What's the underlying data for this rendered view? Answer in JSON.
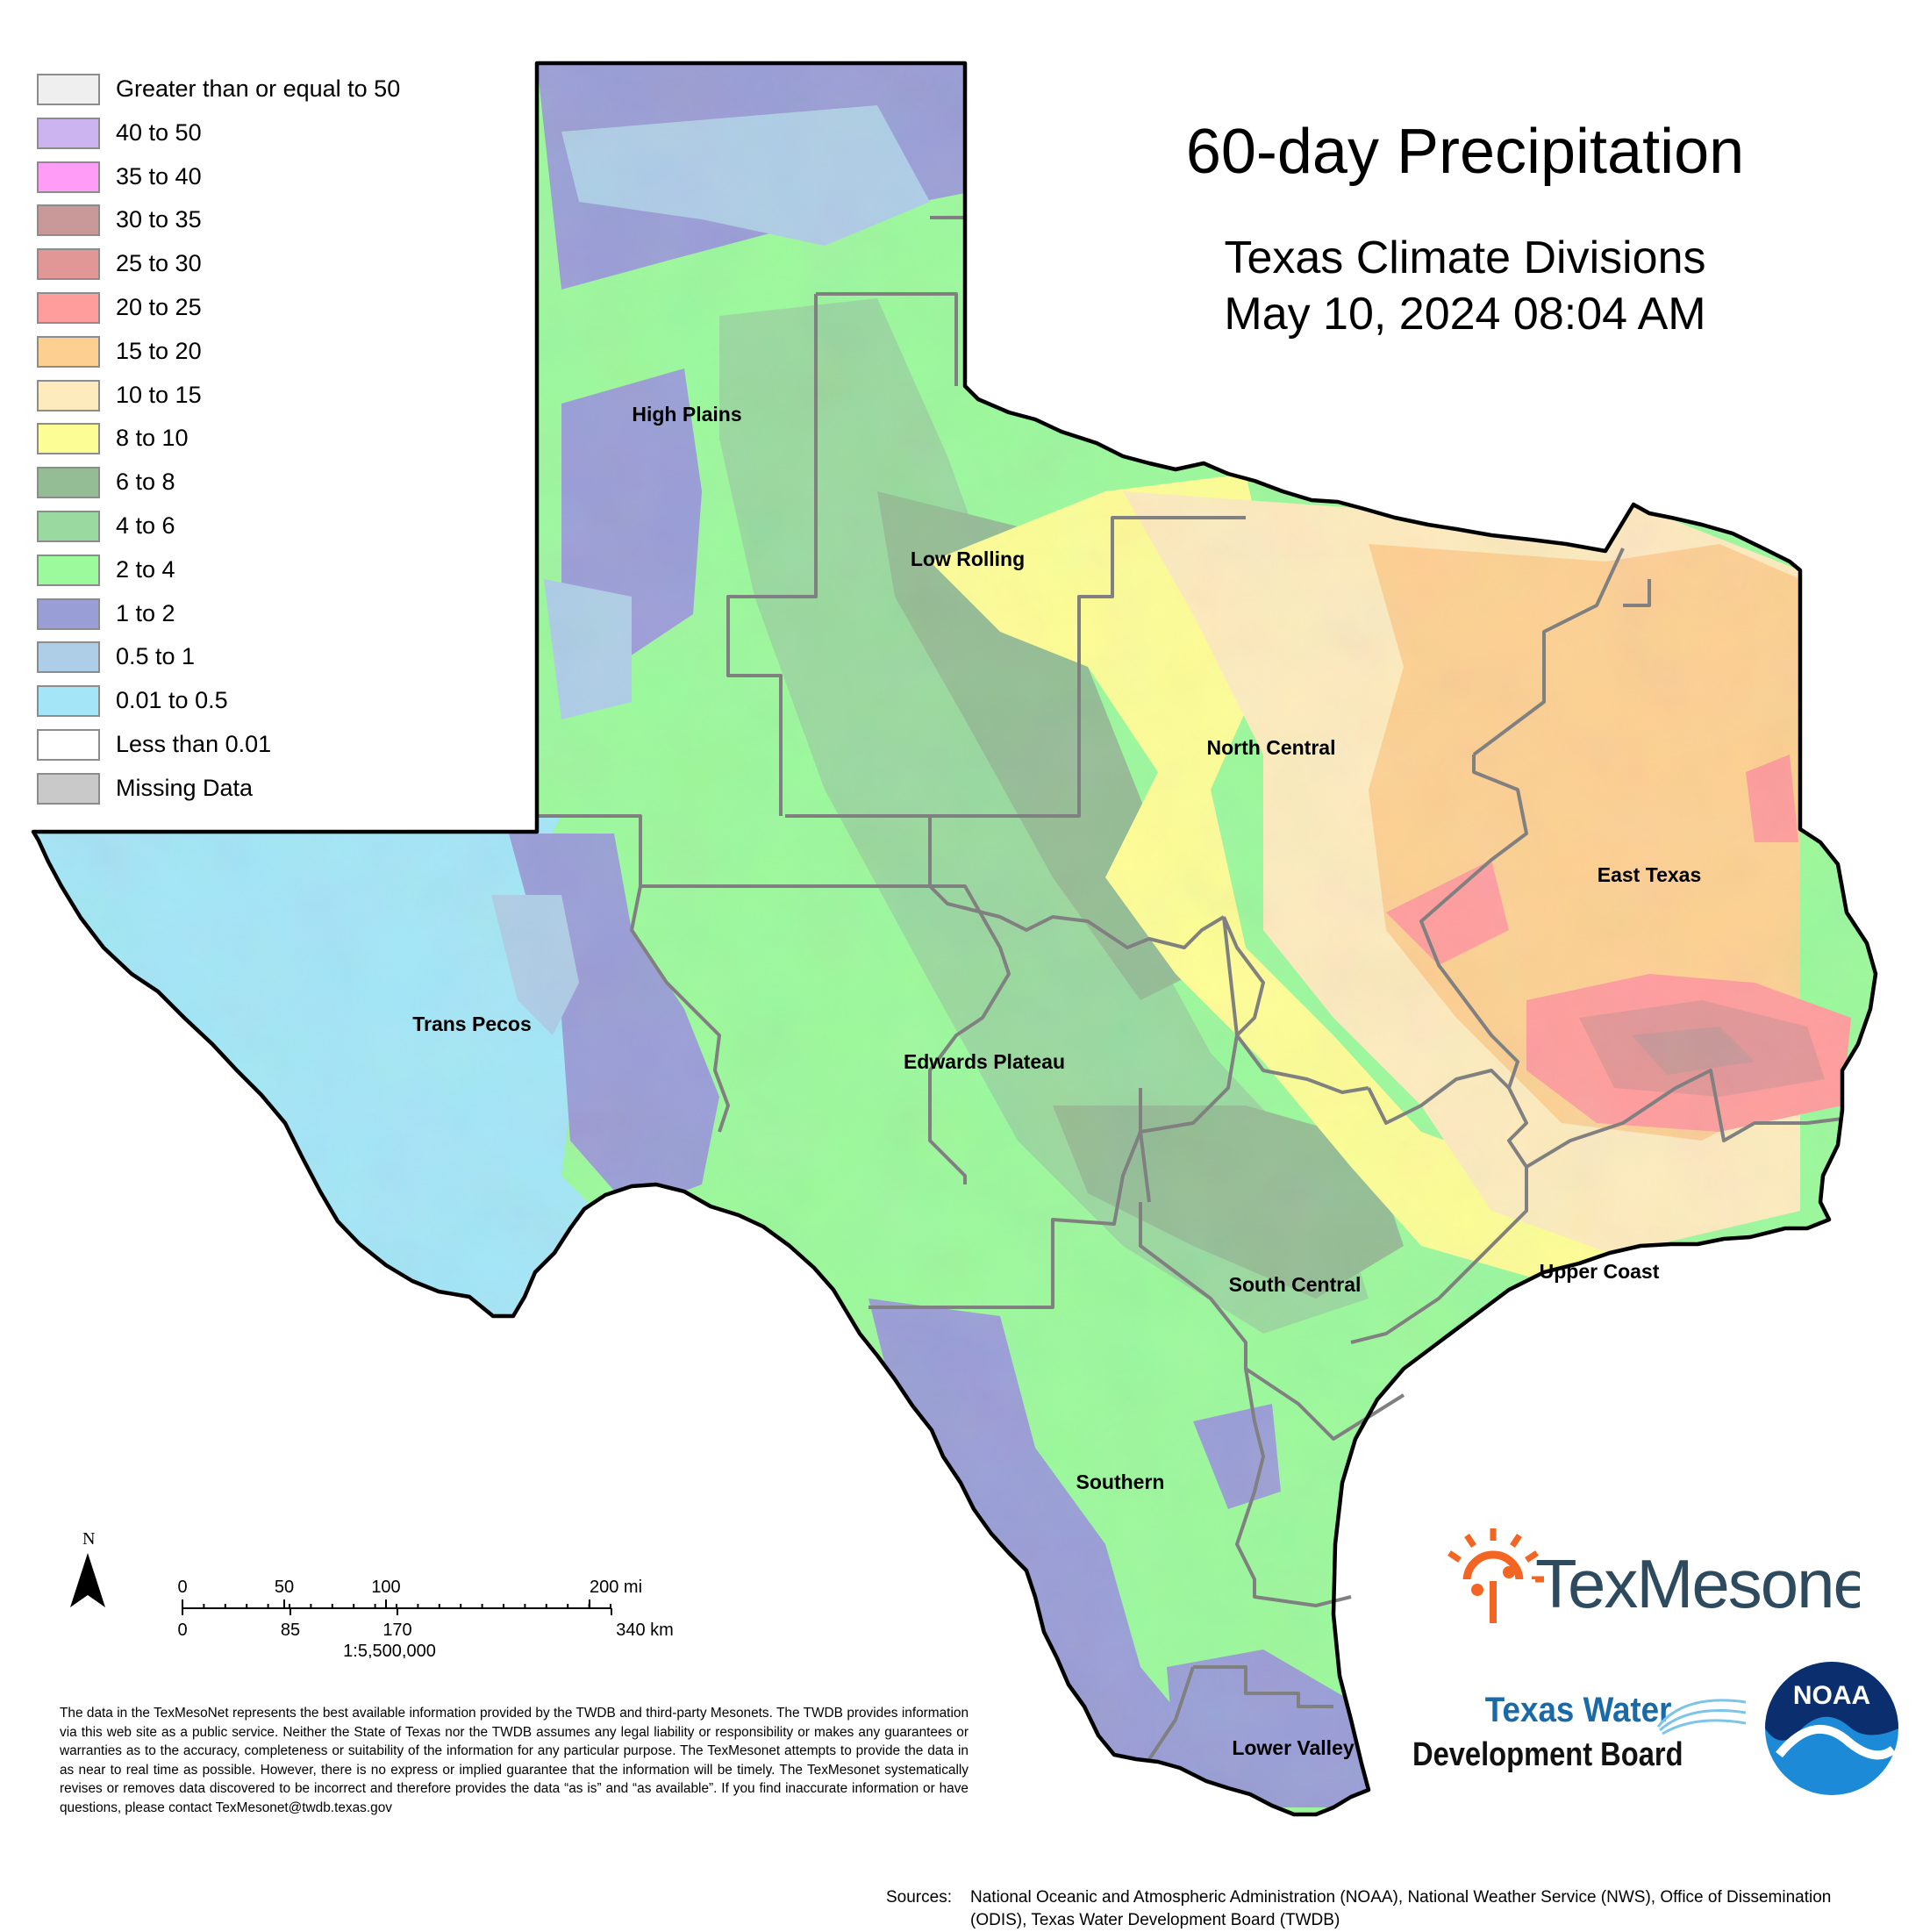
{
  "title": "60-day Precipitation",
  "subtitle": "Texas Climate Divisions",
  "date": "May 10, 2024 08:04 AM",
  "legend": [
    {
      "label": "Greater than or equal to 50",
      "color": "#efefef"
    },
    {
      "label": "40 to 50",
      "color": "#cbb4f0"
    },
    {
      "label": "35 to 40",
      "color": "#ff9cf7"
    },
    {
      "label": "30 to 35",
      "color": "#c99898"
    },
    {
      "label": "25 to 30",
      "color": "#e29797"
    },
    {
      "label": "20 to 25",
      "color": "#ff9d9d"
    },
    {
      "label": "15 to 20",
      "color": "#fdd092"
    },
    {
      "label": "10 to 15",
      "color": "#fdebbe"
    },
    {
      "label": "8 to 10",
      "color": "#fdfd96"
    },
    {
      "label": "6 to 8",
      "color": "#95bd95"
    },
    {
      "label": "4 to 6",
      "color": "#9ad99f"
    },
    {
      "label": "2 to 4",
      "color": "#9cf99c"
    },
    {
      "label": "1 to 2",
      "color": "#9a9ed6"
    },
    {
      "label": "0.5 to 1",
      "color": "#aecde6"
    },
    {
      "label": "0.01 to 0.5",
      "color": "#a4e6f7"
    },
    {
      "label": "Less than 0.01",
      "color": "#ffffff"
    },
    {
      "label": "Missing Data",
      "color": "#c9c9c9"
    }
  ],
  "regions": [
    {
      "name": "High Plains"
    },
    {
      "name": "Low Rolling"
    },
    {
      "name": "North Central"
    },
    {
      "name": "East Texas"
    },
    {
      "name": "Trans Pecos"
    },
    {
      "name": "Edwards Plateau"
    },
    {
      "name": "South Central"
    },
    {
      "name": "Upper Coast"
    },
    {
      "name": "Southern"
    },
    {
      "name": "Lower Valley"
    }
  ],
  "scale": {
    "north": "N",
    "mi_ticks": [
      "0",
      "50",
      "100",
      "200 mi"
    ],
    "km_ticks": [
      "0",
      "85",
      "170",
      "340 km"
    ],
    "ratio": "1:5,500,000"
  },
  "disclaimer": "The data in the TexMesoNet represents the best available information provided by the TWDB and third-party Mesonets. The TWDB provides information via this web site as a public service. Neither the State of Texas nor the TWDB assumes any legal liability or responsibility or makes any guarantees or warranties as to the accuracy, completeness or suitability of the information for any particular purpose. The TexMesonet attempts to provide the data in as near to real time as possible. However, there is no express or implied guarantee that the information will be timely. The TexMesonet systematically revises or removes data discovered to be incorrect and therefore provides the data “as is” and “as available”. If you find inaccurate information or have questions, please contact TexMesonet@twdb.texas.gov",
  "sources_label": "Sources:",
  "sources": "National Oceanic and Atmospheric Administration (NOAA), National Weather Service (NWS), Office of Dissemination (ODIS), Texas Water Development Board (TWDB)",
  "logos": {
    "texmesonet": "TexMesonet",
    "twdb_line1": "Texas Water",
    "twdb_line2": "Development Board",
    "noaa": "NOAA"
  }
}
